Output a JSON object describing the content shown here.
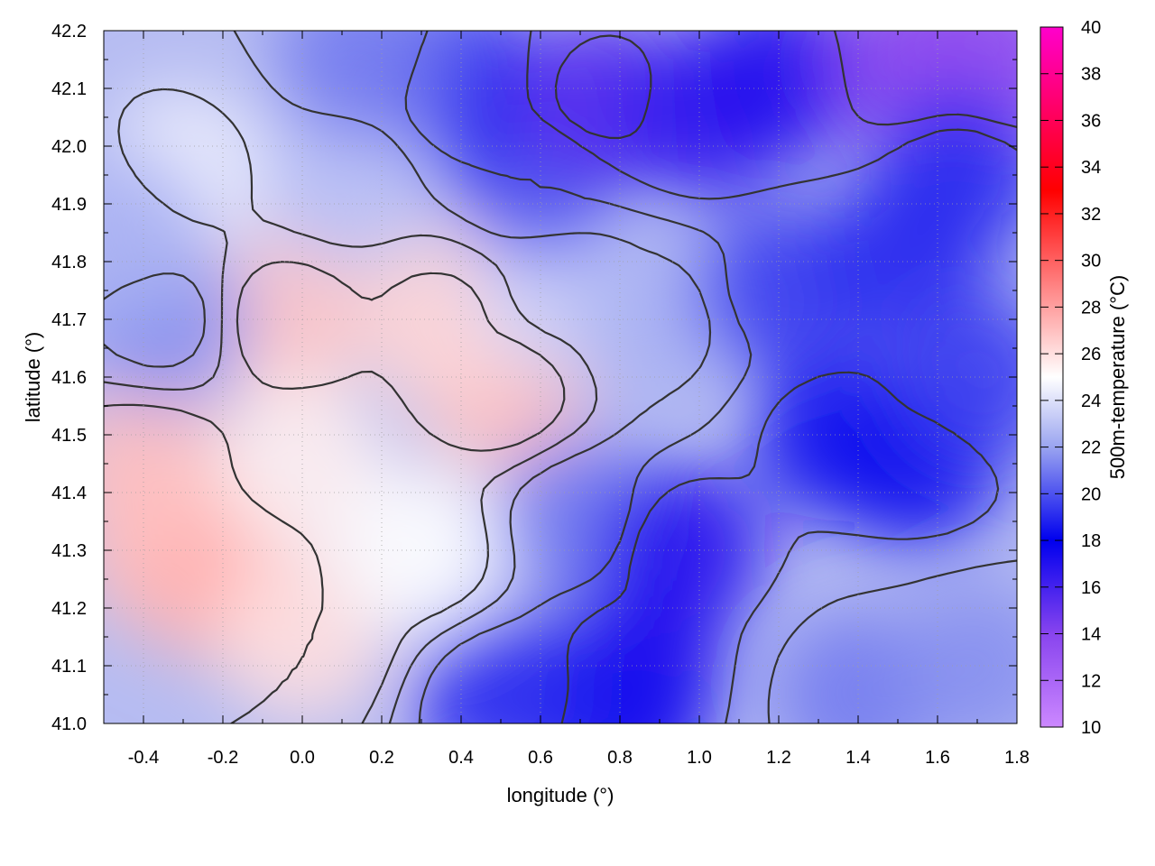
{
  "chart_data": {
    "type": "heatmap",
    "title": "",
    "xlabel": "longitude (°)",
    "ylabel": "latitude (°)",
    "colorbar_label": "500m-temperature (°C)",
    "xlim": [
      -0.5,
      1.8
    ],
    "ylim": [
      41.0,
      42.2
    ],
    "x_ticks": [
      "-0.4",
      "-0.2",
      "0.0",
      "0.2",
      "0.4",
      "0.6",
      "0.8",
      "1.0",
      "1.2",
      "1.4",
      "1.6",
      "1.8"
    ],
    "y_ticks": [
      "41.0",
      "41.1",
      "41.2",
      "41.3",
      "41.4",
      "41.5",
      "41.6",
      "41.7",
      "41.8",
      "41.9",
      "42.0",
      "42.1",
      "42.2"
    ],
    "colorbar_range": [
      10,
      40
    ],
    "colorbar_ticks": [
      "10",
      "12",
      "14",
      "16",
      "18",
      "20",
      "22",
      "24",
      "26",
      "28",
      "30",
      "32",
      "34",
      "36",
      "38",
      "40"
    ],
    "colormap": [
      {
        "value": 10,
        "color": "#cc88ff"
      },
      {
        "value": 14,
        "color": "#8844ee"
      },
      {
        "value": 18,
        "color": "#0000ee"
      },
      {
        "value": 22,
        "color": "#9aa4f0"
      },
      {
        "value": 25,
        "color": "#ffffff"
      },
      {
        "value": 28,
        "color": "#ffa0a0"
      },
      {
        "value": 33,
        "color": "#ff0000"
      },
      {
        "value": 40,
        "color": "#ff00cc"
      }
    ],
    "grid": true,
    "contours": true,
    "field_regions": [
      {
        "lon": -0.35,
        "lat": 41.3,
        "value": 27.0
      },
      {
        "lon": -0.2,
        "lat": 41.25,
        "value": 27.5
      },
      {
        "lon": -0.4,
        "lat": 41.45,
        "value": 27.0
      },
      {
        "lon": -0.05,
        "lat": 41.7,
        "value": 26.8
      },
      {
        "lon": 0.5,
        "lat": 41.58,
        "value": 27.0
      },
      {
        "lon": 0.35,
        "lat": 41.7,
        "value": 26.3
      },
      {
        "lon": 0.0,
        "lat": 41.45,
        "value": 25.5
      },
      {
        "lon": -0.3,
        "lat": 41.95,
        "value": 24.5
      },
      {
        "lon": 0.0,
        "lat": 41.15,
        "value": 26.0
      },
      {
        "lon": 0.3,
        "lat": 41.3,
        "value": 25.0
      },
      {
        "lon": 0.65,
        "lat": 41.75,
        "value": 23.5
      },
      {
        "lon": 0.9,
        "lat": 41.7,
        "value": 22.5
      },
      {
        "lon": 0.7,
        "lat": 41.35,
        "value": 21.0
      },
      {
        "lon": 0.95,
        "lat": 41.3,
        "value": 17.0
      },
      {
        "lon": 0.85,
        "lat": 41.1,
        "value": 17.0
      },
      {
        "lon": 0.8,
        "lat": 41.0,
        "value": 17.5
      },
      {
        "lon": 0.5,
        "lat": 41.05,
        "value": 19.0
      },
      {
        "lon": 1.35,
        "lat": 41.5,
        "value": 17.5
      },
      {
        "lon": 1.55,
        "lat": 41.45,
        "value": 17.5
      },
      {
        "lon": 1.2,
        "lat": 41.75,
        "value": 19.5
      },
      {
        "lon": 1.5,
        "lat": 41.8,
        "value": 19.0
      },
      {
        "lon": 1.7,
        "lat": 41.6,
        "value": 19.5
      },
      {
        "lon": 1.4,
        "lat": 41.05,
        "value": 21.0
      },
      {
        "lon": 1.7,
        "lat": 41.1,
        "value": 21.5
      },
      {
        "lon": 0.6,
        "lat": 41.95,
        "value": 20.0
      },
      {
        "lon": 0.4,
        "lat": 42.1,
        "value": 19.0
      },
      {
        "lon": 0.75,
        "lat": 42.08,
        "value": 15.5
      },
      {
        "lon": 1.0,
        "lat": 42.05,
        "value": 16.5
      },
      {
        "lon": 1.2,
        "lat": 42.12,
        "value": 17.0
      },
      {
        "lon": 1.55,
        "lat": 42.15,
        "value": 14.0
      },
      {
        "lon": 1.75,
        "lat": 42.15,
        "value": 13.5
      },
      {
        "lon": 1.65,
        "lat": 41.95,
        "value": 19.0
      },
      {
        "lon": -0.35,
        "lat": 41.7,
        "value": 21.5
      },
      {
        "lon": -0.45,
        "lat": 41.85,
        "value": 22.5
      },
      {
        "lon": 0.1,
        "lat": 41.95,
        "value": 23.0
      },
      {
        "lon": 0.15,
        "lat": 42.15,
        "value": 21.0
      }
    ]
  }
}
